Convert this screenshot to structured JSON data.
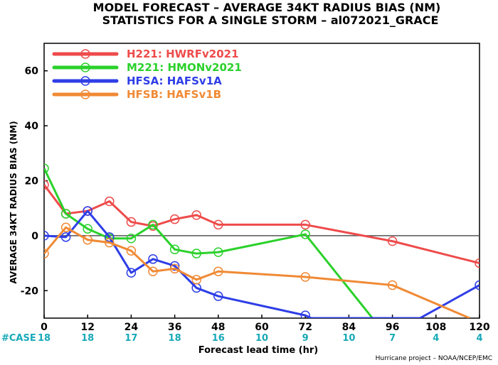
{
  "chart_data": {
    "type": "line",
    "title": "MODEL FORECAST – AVERAGE 34KT RADIUS BIAS (NM)",
    "subtitle": "STATISTICS FOR A SINGLE STORM – al072021_GRACE",
    "xlabel": "Forecast lead time (hr)",
    "ylabel": "AVERAGE 34KT RADIUS BIAS (NM)",
    "xlim": [
      0,
      120
    ],
    "ylim": [
      -30,
      70
    ],
    "xticks": [
      0,
      12,
      24,
      36,
      48,
      60,
      72,
      84,
      96,
      108,
      120
    ],
    "yticks": [
      -20,
      0,
      20,
      40,
      60
    ],
    "zero_line": true,
    "grid": false,
    "legend_placement": "top-left",
    "series": [
      {
        "name": "H221: HWRFv2021",
        "color": "#ee4b4b",
        "x": [
          0,
          6,
          12,
          18,
          24,
          30,
          36,
          42,
          48,
          72,
          96,
          120
        ],
        "y": [
          18.5,
          8,
          9,
          12.5,
          5,
          3.5,
          6,
          7.5,
          4,
          4,
          -2,
          -10
        ]
      },
      {
        "name": "M221: HMONv2021",
        "color": "#2bd12b",
        "x": [
          0,
          6,
          12,
          18,
          24,
          30,
          36,
          42,
          48,
          72,
          90.5
        ],
        "y": [
          24.5,
          8,
          2.5,
          -1,
          -1,
          4,
          -5,
          -6.5,
          -6,
          0.5,
          -30
        ]
      },
      {
        "name": "HFSA: HAFSv1A",
        "color": "#2e3ee6",
        "x": [
          0,
          6,
          12,
          18,
          24,
          30,
          36,
          42,
          48,
          72,
          73.6,
          103.6,
          120
        ],
        "y": [
          0,
          -0.5,
          9,
          -0.5,
          -13.5,
          -8.5,
          -11,
          -19,
          -22,
          -29,
          -30,
          -30,
          -18
        ]
      },
      {
        "name": "HFSB: HAFSv1B",
        "color": "#f08a35",
        "x": [
          0,
          6,
          12,
          18,
          24,
          30,
          36,
          42,
          48,
          72,
          96,
          117.3
        ],
        "y": [
          -6.5,
          3,
          -1.5,
          -2.5,
          -5.5,
          -13,
          -12,
          -16,
          -13,
          -15,
          -18,
          -30
        ]
      }
    ],
    "case_label": "#CASE",
    "case_counts": [
      {
        "x": 0,
        "n": "18"
      },
      {
        "x": 12,
        "n": "18"
      },
      {
        "x": 24,
        "n": "17"
      },
      {
        "x": 36,
        "n": "18"
      },
      {
        "x": 48,
        "n": "16"
      },
      {
        "x": 60,
        "n": "10"
      },
      {
        "x": 72,
        "n": "9"
      },
      {
        "x": 84,
        "n": "10"
      },
      {
        "x": 96,
        "n": "7"
      },
      {
        "x": 108,
        "n": "4"
      },
      {
        "x": 120,
        "n": "4"
      }
    ]
  },
  "credit": "Hurricane project – NOAA/NCEP/EMC"
}
